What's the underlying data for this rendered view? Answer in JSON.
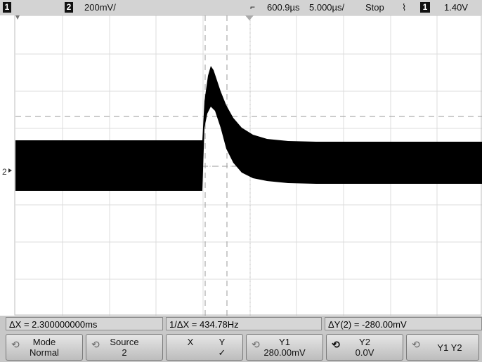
{
  "status_bar": {
    "ch1_label": "1",
    "ch2_label": "2",
    "ch2_scale": "200mV/",
    "time_offset": "600.9µs",
    "time_scale": "5.000µs/",
    "run_state": "Stop",
    "trigger_slope_symbol": "⌇",
    "trigger_source": "1",
    "trigger_level": "1.40V"
  },
  "screen": {
    "channel2_marker": "2"
  },
  "measurements": {
    "delta_x": "ΔX = 2.300000000ms",
    "inv_delta_x": "1/ΔX = 434.78Hz",
    "delta_y": "ΔY(2) = -280.00mV"
  },
  "softkeys": {
    "mode_label": "Mode",
    "mode_value": "Normal",
    "source_label": "Source",
    "source_value": "2",
    "x_label": "X",
    "y_label": "Y",
    "y_check": "✓",
    "y1_label": "Y1",
    "y1_value": "280.00mV",
    "y2_label": "Y2",
    "y2_value": "0.0V",
    "y1y2_label": "Y1 Y2"
  },
  "colors": {
    "trace": "#000000",
    "grid": "#d9d9d9",
    "screen_bg": "#ffffff",
    "chrome": "#c8c8c8"
  }
}
